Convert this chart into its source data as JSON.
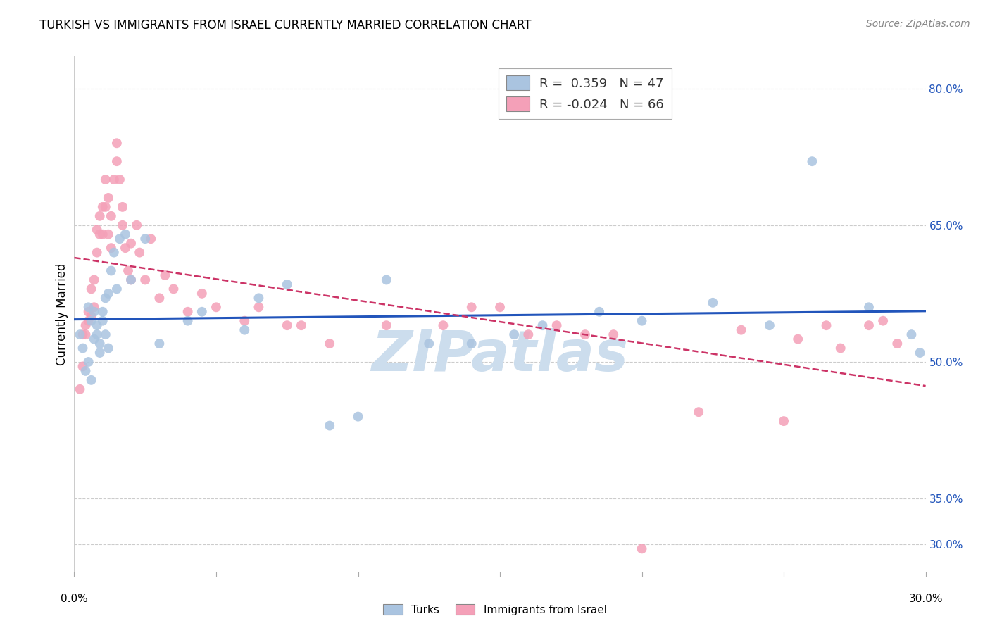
{
  "title": "TURKISH VS IMMIGRANTS FROM ISRAEL CURRENTLY MARRIED CORRELATION CHART",
  "source": "Source: ZipAtlas.com",
  "ylabel": "Currently Married",
  "right_ytick_vals": [
    0.8,
    0.65,
    0.5,
    0.35,
    0.3
  ],
  "right_ytick_labels": [
    "80.0%",
    "65.0%",
    "50.0%",
    "35.0%",
    "30.0%"
  ],
  "blue_color": "#aac4e0",
  "pink_color": "#f4a0b8",
  "blue_line_color": "#2255bb",
  "pink_line_color": "#cc3366",
  "watermark_color": "#ccdded",
  "xmin": 0.0,
  "xmax": 0.3,
  "ymin": 0.27,
  "ymax": 0.835,
  "turks_x": [
    0.002,
    0.003,
    0.004,
    0.005,
    0.005,
    0.006,
    0.006,
    0.007,
    0.007,
    0.008,
    0.008,
    0.009,
    0.009,
    0.01,
    0.01,
    0.011,
    0.011,
    0.012,
    0.012,
    0.013,
    0.014,
    0.015,
    0.016,
    0.018,
    0.02,
    0.025,
    0.03,
    0.04,
    0.045,
    0.06,
    0.065,
    0.075,
    0.09,
    0.1,
    0.11,
    0.125,
    0.14,
    0.155,
    0.165,
    0.185,
    0.2,
    0.225,
    0.245,
    0.26,
    0.28,
    0.295,
    0.298
  ],
  "turks_y": [
    0.53,
    0.515,
    0.49,
    0.56,
    0.5,
    0.545,
    0.48,
    0.555,
    0.525,
    0.54,
    0.53,
    0.52,
    0.51,
    0.555,
    0.545,
    0.53,
    0.57,
    0.515,
    0.575,
    0.6,
    0.62,
    0.58,
    0.635,
    0.64,
    0.59,
    0.635,
    0.52,
    0.545,
    0.555,
    0.535,
    0.57,
    0.585,
    0.43,
    0.44,
    0.59,
    0.52,
    0.52,
    0.53,
    0.54,
    0.555,
    0.545,
    0.565,
    0.54,
    0.72,
    0.56,
    0.53,
    0.51
  ],
  "israel_x": [
    0.002,
    0.003,
    0.003,
    0.004,
    0.004,
    0.005,
    0.005,
    0.006,
    0.006,
    0.007,
    0.007,
    0.008,
    0.008,
    0.009,
    0.009,
    0.01,
    0.01,
    0.011,
    0.011,
    0.012,
    0.012,
    0.013,
    0.013,
    0.014,
    0.015,
    0.015,
    0.016,
    0.017,
    0.017,
    0.018,
    0.019,
    0.02,
    0.02,
    0.022,
    0.023,
    0.025,
    0.027,
    0.03,
    0.032,
    0.035,
    0.04,
    0.045,
    0.05,
    0.06,
    0.065,
    0.075,
    0.08,
    0.09,
    0.11,
    0.13,
    0.14,
    0.15,
    0.16,
    0.17,
    0.18,
    0.19,
    0.2,
    0.22,
    0.235,
    0.25,
    0.255,
    0.265,
    0.27,
    0.28,
    0.285,
    0.29
  ],
  "israel_y": [
    0.47,
    0.53,
    0.495,
    0.54,
    0.53,
    0.555,
    0.545,
    0.55,
    0.58,
    0.59,
    0.56,
    0.62,
    0.645,
    0.64,
    0.66,
    0.67,
    0.64,
    0.67,
    0.7,
    0.68,
    0.64,
    0.66,
    0.625,
    0.7,
    0.74,
    0.72,
    0.7,
    0.65,
    0.67,
    0.625,
    0.6,
    0.63,
    0.59,
    0.65,
    0.62,
    0.59,
    0.635,
    0.57,
    0.595,
    0.58,
    0.555,
    0.575,
    0.56,
    0.545,
    0.56,
    0.54,
    0.54,
    0.52,
    0.54,
    0.54,
    0.56,
    0.56,
    0.53,
    0.54,
    0.53,
    0.53,
    0.295,
    0.445,
    0.535,
    0.435,
    0.525,
    0.54,
    0.515,
    0.54,
    0.545,
    0.52
  ]
}
